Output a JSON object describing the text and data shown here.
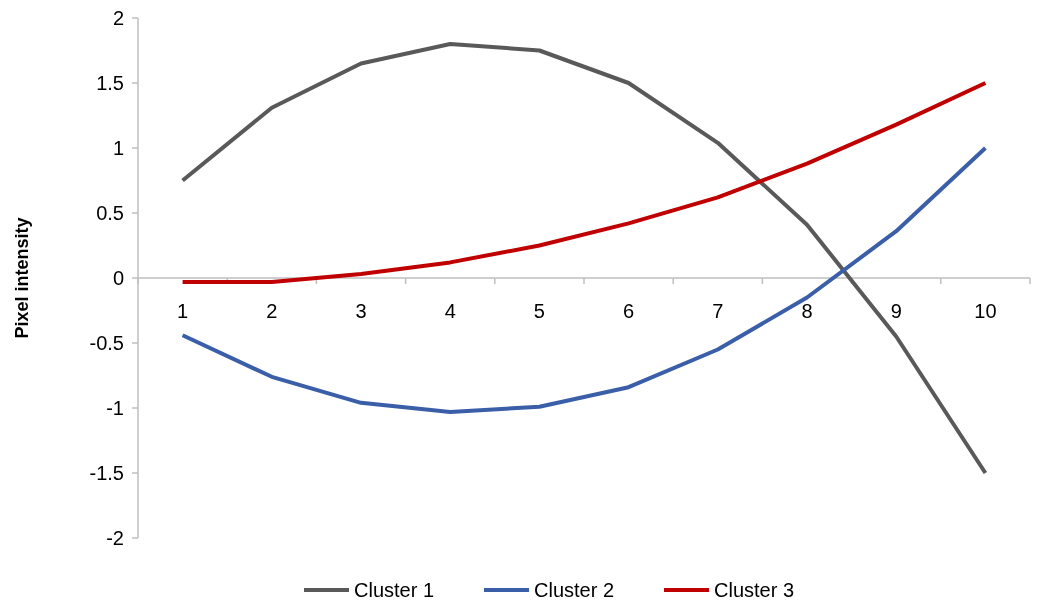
{
  "chart_data": {
    "type": "line",
    "ylabel": "Pixel intensity",
    "categories": [
      "1",
      "2",
      "3",
      "4",
      "5",
      "6",
      "7",
      "8",
      "9",
      "10"
    ],
    "series": [
      {
        "name": "Cluster 1",
        "color": "#595959",
        "values": [
          0.75,
          1.31,
          1.65,
          1.8,
          1.75,
          1.5,
          1.04,
          0.41,
          -0.45,
          -1.5
        ]
      },
      {
        "name": "Cluster 2",
        "color": "#3a5ea8",
        "values": [
          -0.44,
          -0.76,
          -0.96,
          -1.03,
          -0.99,
          -0.84,
          -0.55,
          -0.15,
          0.36,
          1.0
        ]
      },
      {
        "name": "Cluster 3",
        "color": "#c00000",
        "values": [
          -0.03,
          -0.03,
          0.03,
          0.12,
          0.25,
          0.42,
          0.62,
          0.88,
          1.18,
          1.5
        ]
      }
    ],
    "ylim": [
      -2,
      2
    ],
    "yticks": [
      -2,
      -1.5,
      -1,
      -0.5,
      0,
      0.5,
      1,
      1.5,
      2
    ],
    "grid": false,
    "legend": "bottom",
    "marker": "none",
    "line_style": "solid"
  }
}
